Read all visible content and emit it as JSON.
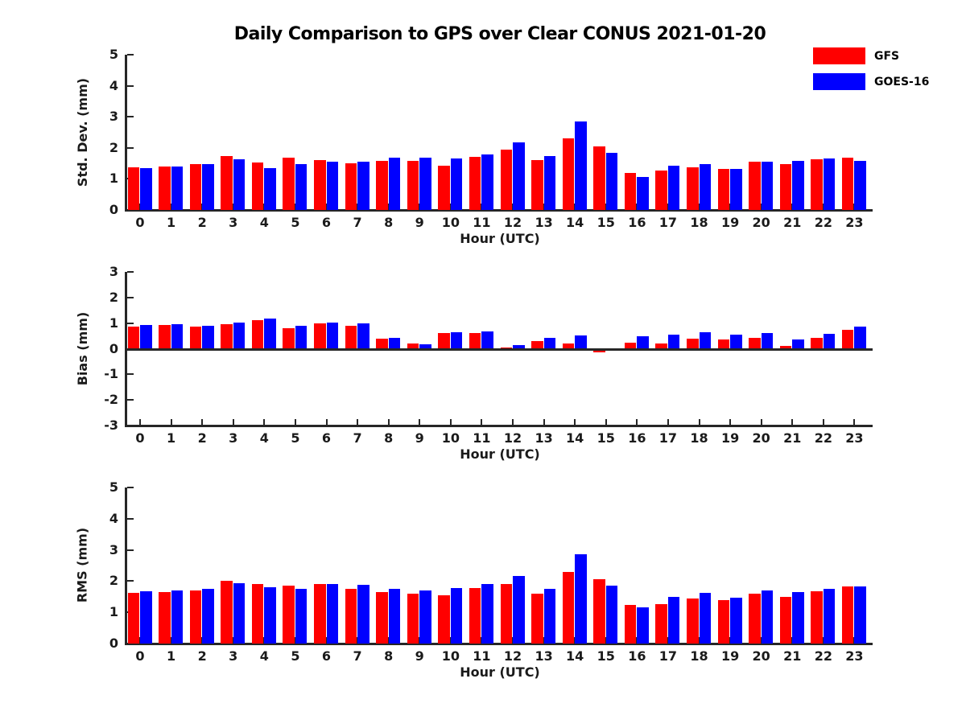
{
  "title": "Daily Comparison to GPS over Clear CONUS 2021-01-20",
  "colors": {
    "gfs": "#ff0000",
    "goes16": "#0000ff",
    "axis": "#262626",
    "background": "#ffffff"
  },
  "legend": {
    "position": "top-right",
    "items": [
      {
        "label": "GFS",
        "color": "#ff0000"
      },
      {
        "label": "GOES-16",
        "color": "#0000ff"
      }
    ]
  },
  "chart_data": [
    {
      "type": "bar",
      "id": "stddev",
      "ylabel": "Std. Dev. (mm)",
      "xlabel": "Hour (UTC)",
      "ylim": [
        0,
        5
      ],
      "yticks": [
        0,
        1,
        2,
        3,
        4,
        5
      ],
      "grid": false,
      "categories": [
        0,
        1,
        2,
        3,
        4,
        5,
        6,
        7,
        8,
        9,
        10,
        11,
        12,
        13,
        14,
        15,
        16,
        17,
        18,
        19,
        20,
        21,
        22,
        23
      ],
      "series": [
        {
          "name": "GFS",
          "color": "#ff0000",
          "values": [
            1.38,
            1.39,
            1.48,
            1.73,
            1.54,
            1.69,
            1.61,
            1.5,
            1.59,
            1.59,
            1.42,
            1.7,
            1.95,
            1.6,
            2.31,
            2.05,
            1.2,
            1.26,
            1.38,
            1.33,
            1.56,
            1.48,
            1.62,
            1.69
          ]
        },
        {
          "name": "GOES-16",
          "color": "#0000ff",
          "values": [
            1.35,
            1.39,
            1.48,
            1.64,
            1.35,
            1.47,
            1.55,
            1.56,
            1.68,
            1.68,
            1.67,
            1.78,
            2.18,
            1.73,
            2.86,
            1.84,
            1.05,
            1.42,
            1.48,
            1.33,
            1.56,
            1.58,
            1.65,
            1.58
          ]
        }
      ]
    },
    {
      "type": "bar",
      "id": "bias",
      "ylabel": "Bias (mm)",
      "xlabel": "Hour (UTC)",
      "ylim": [
        -3,
        3
      ],
      "yticks": [
        3,
        2,
        1,
        0,
        -1,
        -2,
        -3
      ],
      "grid": false,
      "categories": [
        0,
        1,
        2,
        3,
        4,
        5,
        6,
        7,
        8,
        9,
        10,
        11,
        12,
        13,
        14,
        15,
        16,
        17,
        18,
        19,
        20,
        21,
        22,
        23
      ],
      "series": [
        {
          "name": "GFS",
          "color": "#ff0000",
          "values": [
            0.85,
            0.92,
            0.87,
            0.96,
            1.1,
            0.81,
            0.98,
            0.89,
            0.4,
            0.21,
            0.6,
            0.62,
            0.05,
            0.29,
            0.2,
            -0.14,
            0.24,
            0.21,
            0.4,
            0.35,
            0.43,
            0.12,
            0.43,
            0.74
          ]
        },
        {
          "name": "GOES-16",
          "color": "#0000ff",
          "values": [
            0.92,
            0.95,
            0.9,
            1.01,
            1.17,
            0.9,
            1.03,
            1.0,
            0.43,
            0.17,
            0.63,
            0.66,
            0.14,
            0.41,
            0.52,
            -0.02,
            0.49,
            0.56,
            0.64,
            0.56,
            0.61,
            0.36,
            0.57,
            0.87
          ]
        }
      ]
    },
    {
      "type": "bar",
      "id": "rms",
      "ylabel": "RMS (mm)",
      "xlabel": "Hour (UTC)",
      "ylim": [
        0,
        5
      ],
      "yticks": [
        0,
        1,
        2,
        3,
        4,
        5
      ],
      "grid": false,
      "categories": [
        0,
        1,
        2,
        3,
        4,
        5,
        6,
        7,
        8,
        9,
        10,
        11,
        12,
        13,
        14,
        15,
        16,
        17,
        18,
        19,
        20,
        21,
        22,
        23
      ],
      "series": [
        {
          "name": "GFS",
          "color": "#ff0000",
          "values": [
            1.62,
            1.66,
            1.71,
            2.0,
            1.9,
            1.85,
            1.9,
            1.74,
            1.64,
            1.61,
            1.55,
            1.79,
            1.91,
            1.6,
            2.3,
            2.05,
            1.24,
            1.27,
            1.44,
            1.38,
            1.6,
            1.5,
            1.67,
            1.84
          ]
        },
        {
          "name": "GOES-16",
          "color": "#0000ff",
          "values": [
            1.67,
            1.69,
            1.74,
            1.93,
            1.8,
            1.74,
            1.9,
            1.87,
            1.74,
            1.69,
            1.78,
            1.9,
            2.17,
            1.74,
            2.87,
            1.85,
            1.16,
            1.5,
            1.63,
            1.48,
            1.7,
            1.64,
            1.74,
            1.84
          ]
        }
      ]
    }
  ]
}
